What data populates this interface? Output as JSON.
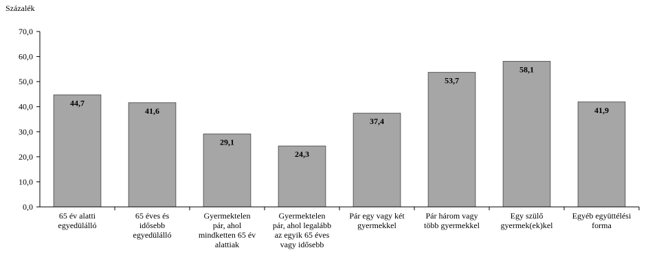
{
  "chart_data": {
    "type": "bar",
    "ylabel": "Százalék",
    "ylim": [
      0,
      70
    ],
    "ytick_step": 10,
    "ytick_labels": [
      "0,0",
      "10,0",
      "20,0",
      "30,0",
      "40,0",
      "50,0",
      "60,0",
      "70,0"
    ],
    "grid": false,
    "legend": "none",
    "bar_color": "#a6a6a6",
    "bar_edge_color": "#5a5a5a",
    "categories": [
      [
        "65 év alatti",
        "egyedülálló"
      ],
      [
        "65 éves és",
        "idősebb",
        "egyedülálló"
      ],
      [
        "Gyermektelen",
        "pár, ahol",
        "mindketten 65 év",
        "alattiak"
      ],
      [
        "Gyermektelen",
        "pár, ahol legalább",
        "az egyik 65 éves",
        "vagy idősebb"
      ],
      [
        "Pár egy vagy két",
        "gyermekkel"
      ],
      [
        "Pár három vagy",
        "több gyermekkel"
      ],
      [
        "Egy szülő",
        "gyermek(ek)kel"
      ],
      [
        "Egyéb együttélési",
        "forma"
      ]
    ],
    "values": [
      44.7,
      41.6,
      29.1,
      24.3,
      37.4,
      53.7,
      58.1,
      41.9
    ],
    "value_labels": [
      "44,7",
      "41,6",
      "29,1",
      "24,3",
      "37,4",
      "53,7",
      "58,1",
      "41,9"
    ]
  }
}
